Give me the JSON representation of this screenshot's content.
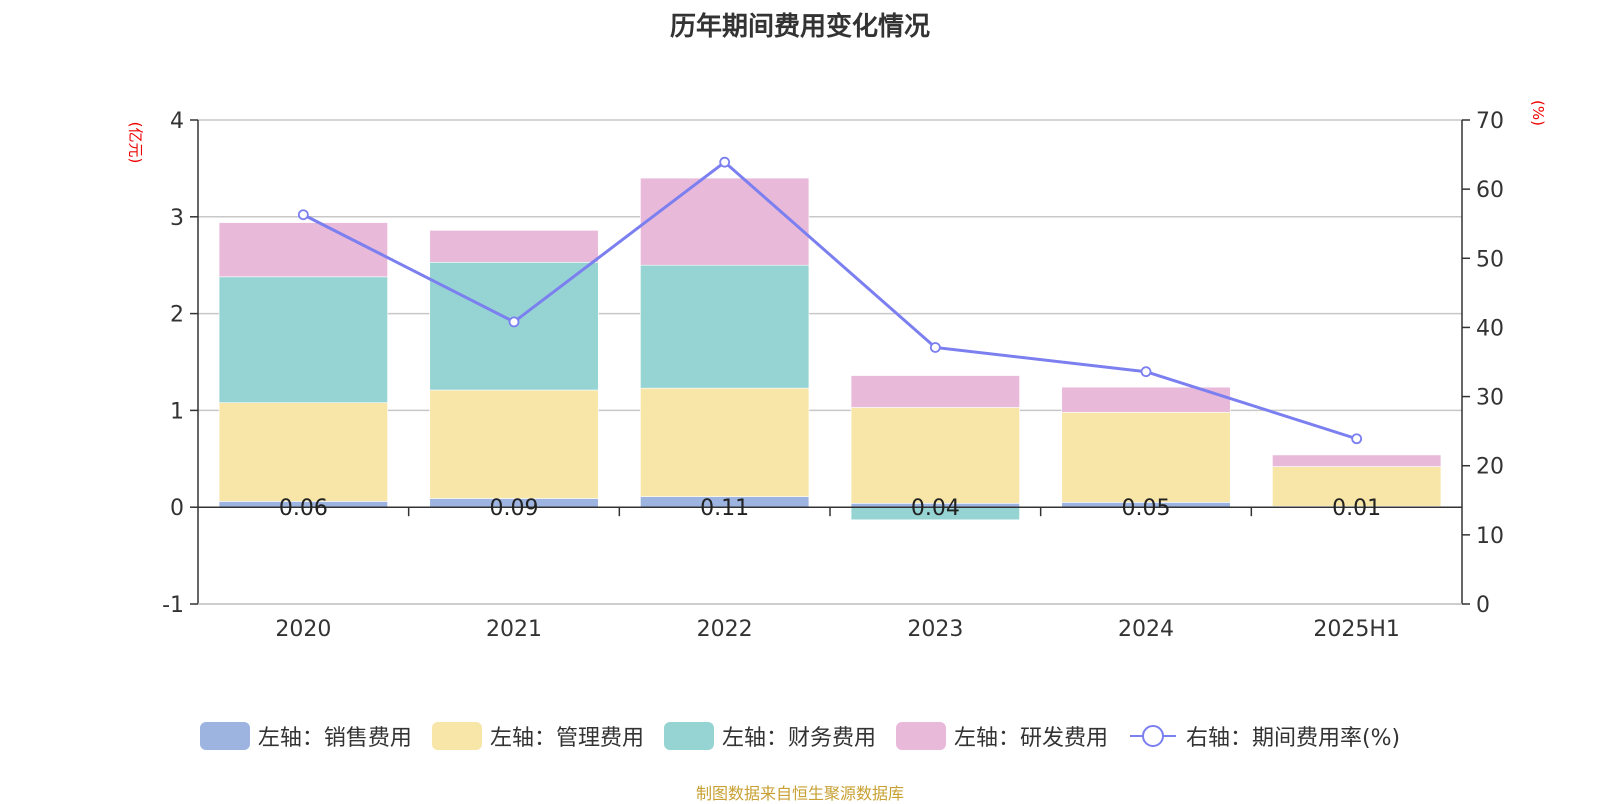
{
  "chart_data": {
    "type": "bar",
    "title": "历年期间费用变化情况",
    "categories": [
      "2020",
      "2021",
      "2022",
      "2023",
      "2024",
      "2025H1"
    ],
    "left_axis": {
      "unit": "(亿元)",
      "ylim": [
        -1,
        4
      ],
      "ticks": [
        "-1",
        "0",
        "1",
        "2",
        "3",
        "4"
      ]
    },
    "right_axis": {
      "unit": "(%)",
      "ylim": [
        0,
        70
      ],
      "ticks": [
        "0",
        "10",
        "20",
        "30",
        "40",
        "50",
        "60",
        "70"
      ]
    },
    "stacked": true,
    "series": [
      {
        "name": "左轴：销售费用",
        "axis": "left",
        "color": "#9db4e0",
        "values": [
          0.06,
          0.09,
          0.11,
          0.04,
          0.05,
          0.01
        ],
        "labels": [
          "0.06",
          "0.09",
          "0.11",
          "0.04",
          "0.05",
          "0.01"
        ]
      },
      {
        "name": "左轴：管理费用",
        "axis": "left",
        "color": "#f8e6a8",
        "values": [
          1.02,
          1.12,
          1.12,
          0.99,
          0.93,
          0.41
        ]
      },
      {
        "name": "左轴：财务费用",
        "axis": "left",
        "color": "#96d4d4",
        "values": [
          1.3,
          1.32,
          1.27,
          -0.13,
          0.0,
          0.0
        ]
      },
      {
        "name": "左轴：研发费用",
        "axis": "left",
        "color": "#e8b9d9",
        "values": [
          0.56,
          0.33,
          0.9,
          0.33,
          0.26,
          0.12
        ]
      }
    ],
    "line": {
      "name": "右轴：期间费用率(%)",
      "axis": "right",
      "color": "#7b7fef",
      "values": [
        56.3,
        40.8,
        63.9,
        37.1,
        33.6,
        23.9
      ]
    },
    "grid": true,
    "legend_position": "bottom"
  },
  "source": "制图数据来自恒生聚源数据库"
}
